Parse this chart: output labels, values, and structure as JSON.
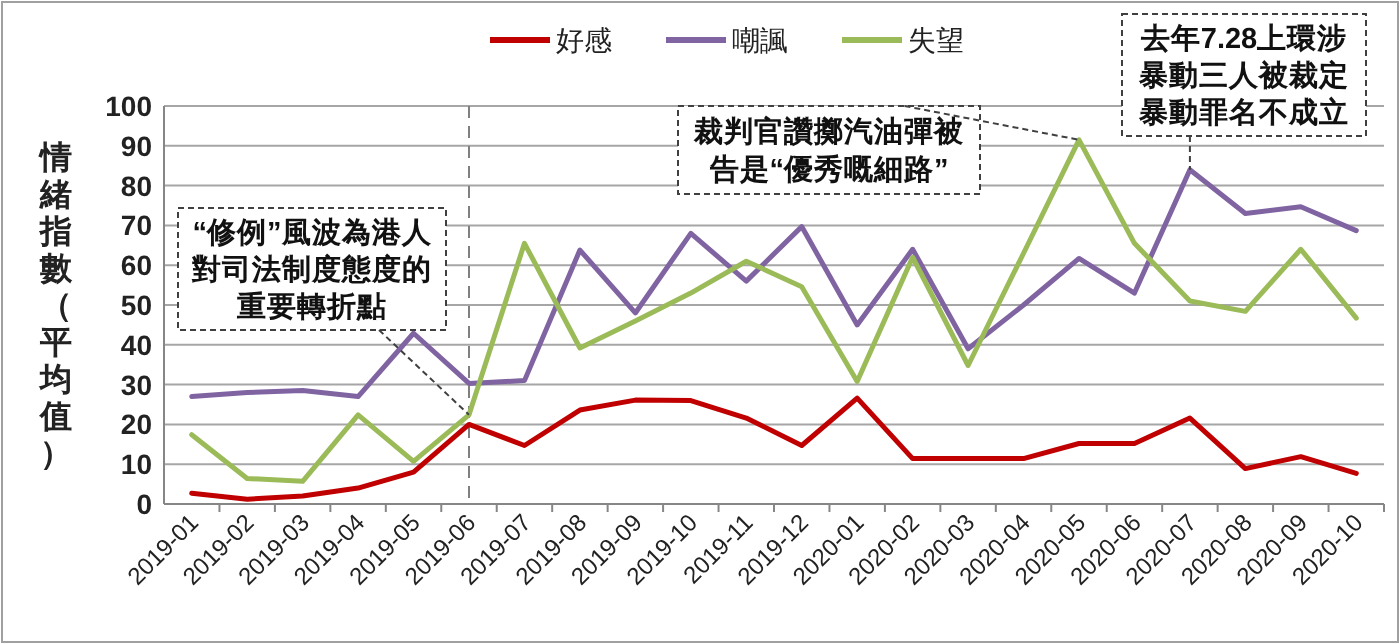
{
  "chart_data": {
    "type": "line",
    "ylabel": "情緒指數（平均值）",
    "categories": [
      "2019-01",
      "2019-02",
      "2019-03",
      "2019-04",
      "2019-05",
      "2019-06",
      "2019-07",
      "2019-08",
      "2019-09",
      "2019-10",
      "2019-11",
      "2019-12",
      "2020-01",
      "2020-02",
      "2020-03",
      "2020-04",
      "2020-05",
      "2020-06",
      "2020-07",
      "2020-08",
      "2020-09",
      "2020-10"
    ],
    "series": [
      {
        "name": "好感",
        "color": "#c00000",
        "values": [
          2.7,
          1.2,
          2,
          4,
          8,
          20,
          14.7,
          23.6,
          26.1,
          26,
          21.6,
          14.7,
          26.6,
          11.4,
          11.4,
          11.4,
          15.2,
          15.2,
          21.6,
          8.9,
          11.9,
          7.7
        ]
      },
      {
        "name": "嘲諷",
        "color": "#8064a2",
        "values": [
          27,
          28,
          28.5,
          27,
          42.9,
          30.3,
          31,
          63.8,
          48,
          68,
          56,
          69.7,
          45,
          64,
          39,
          50,
          61.7,
          53,
          84,
          73,
          74.7,
          68.7
        ]
      },
      {
        "name": "失望",
        "color": "#9bbb59",
        "values": [
          17.4,
          6.4,
          5.7,
          22.4,
          10.7,
          22.4,
          65.5,
          39.2,
          46,
          53,
          61,
          54.6,
          30.8,
          62,
          34.8,
          63,
          91.5,
          65.5,
          51,
          48.4,
          64,
          46.7
        ]
      }
    ],
    "ylim": [
      0,
      100
    ],
    "yticks": [
      0,
      10,
      20,
      30,
      40,
      50,
      60,
      70,
      80,
      90,
      100
    ],
    "grid": "y",
    "legend": "top",
    "marker": "none",
    "line_style": "solid",
    "ref_lines": [
      {
        "axis": "x",
        "value": "2019-06",
        "color": "#808080",
        "line_style": "dashed"
      }
    ],
    "annotations": [
      {
        "text": "“修例”風波為港人對司法制度態度的重要轉折點",
        "x": "2019-06",
        "y": 22.4
      },
      {
        "text": "裁判官讚擲汽油彈被告是“優秀嘅細路”",
        "x": "2020-05",
        "y": 91.5
      },
      {
        "text": "去年7.28上環涉暴動三人被裁定暴動罪名不成立",
        "x": "2020-07",
        "y": 84
      }
    ]
  }
}
